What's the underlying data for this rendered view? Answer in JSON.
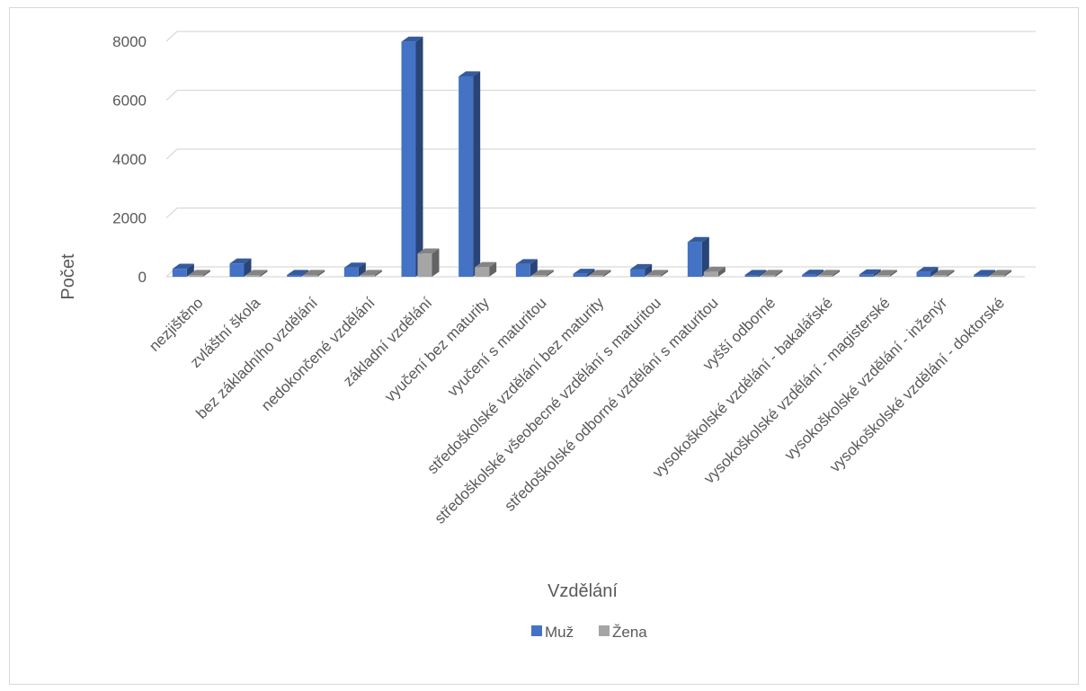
{
  "chart_data": {
    "type": "bar",
    "style": "3d-clustered-column",
    "title": "",
    "xlabel": "Vzdělání",
    "ylabel": "Počet",
    "ylim": [
      0,
      8000
    ],
    "yticks": [
      0,
      2000,
      4000,
      6000,
      8000
    ],
    "grid": true,
    "legend_position": "bottom",
    "categories": [
      "nezjištěno",
      "zvláštní škola",
      "bez základního vzdělání",
      "nedokončené vzdělání",
      "základní vzdělání",
      "vyučení bez maturity",
      "vyučení s maturitou",
      "středoškolské vzdělání bez maturity",
      "středoškolské všeobecné vzdělání s maturitou",
      "středoškolské odborné vzdělání s maturitou",
      "vyšší odborné",
      "vysokoškolské vzdělání - bakalářské",
      "vysokoškolské vzdělání - magisterské",
      "vysokoškolské vzdělání - inženýr",
      "vysokoškolské vzdělání - doktorské"
    ],
    "series": [
      {
        "name": "Muž",
        "color": "#4472c4",
        "values": [
          270,
          450,
          40,
          310,
          7990,
          6810,
          430,
          100,
          260,
          1180,
          20,
          70,
          80,
          160,
          40
        ]
      },
      {
        "name": "Žena",
        "color": "#a5a5a5",
        "values": [
          40,
          60,
          10,
          60,
          790,
          330,
          50,
          20,
          50,
          170,
          10,
          20,
          30,
          30,
          10
        ]
      }
    ]
  }
}
